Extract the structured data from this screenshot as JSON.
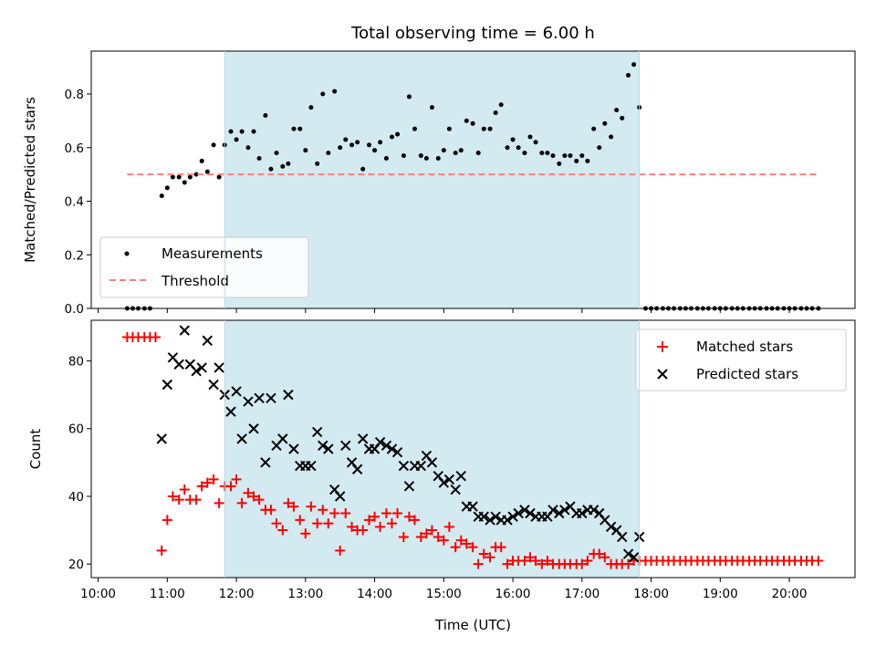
{
  "chart_data": [
    {
      "type": "scatter",
      "title": "Total observing time = 6.00 h",
      "ylabel": "Matched/Predicted stars",
      "xlabel": "",
      "xlim": [
        9.9,
        20.95
      ],
      "ylim": [
        0.0,
        0.96
      ],
      "yticks": [
        0.0,
        0.2,
        0.4,
        0.6,
        0.8
      ],
      "ytick_labels": [
        "0.0",
        "0.2",
        "0.4",
        "0.6",
        "0.8"
      ],
      "shaded_span": [
        11.83,
        17.83
      ],
      "shade_color": "#d3eaf0",
      "legend_position": "lower-left",
      "series": [
        {
          "name": "Measurements",
          "marker": "dot",
          "color": "#000000",
          "x": [
            10.42,
            10.5,
            10.58,
            10.67,
            10.75,
            10.92,
            11.0,
            11.08,
            11.17,
            11.25,
            11.33,
            11.42,
            11.5,
            11.58,
            11.67,
            11.75,
            11.83,
            11.92,
            12.0,
            12.08,
            12.17,
            12.25,
            12.33,
            12.42,
            12.5,
            12.58,
            12.67,
            12.75,
            12.83,
            12.92,
            13.0,
            13.08,
            13.17,
            13.25,
            13.33,
            13.42,
            13.5,
            13.58,
            13.67,
            13.75,
            13.83,
            13.92,
            14.0,
            14.08,
            14.17,
            14.25,
            14.33,
            14.42,
            14.5,
            14.58,
            14.67,
            14.75,
            14.83,
            14.92,
            15.0,
            15.08,
            15.17,
            15.25,
            15.33,
            15.42,
            15.5,
            15.58,
            15.67,
            15.75,
            15.83,
            15.92,
            16.0,
            16.08,
            16.17,
            16.25,
            16.33,
            16.42,
            16.5,
            16.58,
            16.67,
            16.75,
            16.83,
            16.92,
            17.0,
            17.08,
            17.17,
            17.25,
            17.33,
            17.42,
            17.5,
            17.58,
            17.67,
            17.75,
            17.83,
            17.92,
            18.0,
            18.08,
            18.17,
            18.25,
            18.33,
            18.42,
            18.5,
            18.58,
            18.67,
            18.75,
            18.83,
            18.92,
            19.0,
            19.08,
            19.17,
            19.25,
            19.33,
            19.42,
            19.5,
            19.58,
            19.67,
            19.75,
            19.83,
            19.92,
            20.0,
            20.08,
            20.17,
            20.25,
            20.33,
            20.42
          ],
          "y": [
            0.0,
            0.0,
            0.0,
            0.0,
            0.0,
            0.42,
            0.45,
            0.49,
            0.49,
            0.47,
            0.49,
            0.5,
            0.55,
            0.51,
            0.61,
            0.49,
            0.61,
            0.66,
            0.63,
            0.66,
            0.6,
            0.66,
            0.56,
            0.72,
            0.52,
            0.58,
            0.53,
            0.54,
            0.67,
            0.67,
            0.59,
            0.75,
            0.54,
            0.8,
            0.58,
            0.81,
            0.6,
            0.63,
            0.61,
            0.62,
            0.52,
            0.61,
            0.59,
            0.62,
            0.56,
            0.64,
            0.65,
            0.57,
            0.79,
            0.67,
            0.57,
            0.56,
            0.75,
            0.56,
            0.59,
            0.67,
            0.58,
            0.59,
            0.7,
            0.69,
            0.58,
            0.67,
            0.67,
            0.73,
            0.76,
            0.6,
            0.63,
            0.6,
            0.58,
            0.64,
            0.62,
            0.58,
            0.58,
            0.57,
            0.54,
            0.57,
            0.57,
            0.55,
            0.57,
            0.55,
            0.67,
            0.6,
            0.69,
            0.64,
            0.74,
            0.71,
            0.87,
            0.91,
            0.75,
            0.0,
            0.0,
            0.0,
            0.0,
            0.0,
            0.0,
            0.0,
            0.0,
            0.0,
            0.0,
            0.0,
            0.0,
            0.0,
            0.0,
            0.0,
            0.0,
            0.0,
            0.0,
            0.0,
            0.0,
            0.0,
            0.0,
            0.0,
            0.0,
            0.0,
            0.0,
            0.0,
            0.0,
            0.0,
            0.0,
            0.0
          ]
        },
        {
          "name": "Threshold",
          "style": "dashed",
          "color": "#ff7f7f",
          "x": [
            10.42,
            20.42
          ],
          "y": [
            0.5,
            0.5
          ]
        }
      ]
    },
    {
      "type": "scatter",
      "title": "",
      "ylabel": "Count",
      "xlabel": "Time (UTC)",
      "xlim": [
        9.9,
        20.95
      ],
      "ylim": [
        16,
        92
      ],
      "yticks": [
        20,
        40,
        60,
        80
      ],
      "ytick_labels": [
        "20",
        "40",
        "60",
        "80"
      ],
      "xticks": [
        10,
        11,
        12,
        13,
        14,
        15,
        16,
        17,
        18,
        19,
        20
      ],
      "xtick_labels": [
        "10:00",
        "11:00",
        "12:00",
        "13:00",
        "14:00",
        "15:00",
        "16:00",
        "17:00",
        "18:00",
        "19:00",
        "20:00"
      ],
      "shaded_span": [
        11.83,
        17.83
      ],
      "shade_color": "#d3eaf0",
      "legend_position": "upper-right",
      "series": [
        {
          "name": "Matched stars",
          "marker": "plus",
          "color": "#ff0000",
          "x": [
            10.42,
            10.5,
            10.58,
            10.67,
            10.75,
            10.83,
            10.92,
            11.0,
            11.08,
            11.17,
            11.25,
            11.33,
            11.42,
            11.5,
            11.58,
            11.67,
            11.75,
            11.83,
            11.92,
            12.0,
            12.08,
            12.17,
            12.25,
            12.33,
            12.42,
            12.5,
            12.58,
            12.67,
            12.75,
            12.83,
            12.92,
            13.0,
            13.08,
            13.17,
            13.25,
            13.33,
            13.42,
            13.5,
            13.58,
            13.67,
            13.75,
            13.83,
            13.92,
            14.0,
            14.08,
            14.17,
            14.25,
            14.33,
            14.42,
            14.5,
            14.58,
            14.67,
            14.75,
            14.83,
            14.92,
            15.0,
            15.08,
            15.17,
            15.25,
            15.33,
            15.42,
            15.5,
            15.58,
            15.67,
            15.75,
            15.83,
            15.92,
            16.0,
            16.08,
            16.17,
            16.25,
            16.33,
            16.42,
            16.5,
            16.58,
            16.67,
            16.75,
            16.83,
            16.92,
            17.0,
            17.08,
            17.17,
            17.25,
            17.33,
            17.42,
            17.5,
            17.58,
            17.67,
            17.75,
            17.83,
            17.92,
            18.0,
            18.08,
            18.17,
            18.25,
            18.33,
            18.42,
            18.5,
            18.58,
            18.67,
            18.75,
            18.83,
            18.92,
            19.0,
            19.08,
            19.17,
            19.25,
            19.33,
            19.42,
            19.5,
            19.58,
            19.67,
            19.75,
            19.83,
            19.92,
            20.0,
            20.08,
            20.17,
            20.25,
            20.33,
            20.42
          ],
          "y": [
            87,
            87,
            87,
            87,
            87,
            87,
            24,
            33,
            40,
            39,
            42,
            39,
            39,
            43,
            44,
            45,
            38,
            43,
            43,
            45,
            38,
            41,
            40,
            39,
            36,
            36,
            32,
            30,
            38,
            37,
            33,
            29,
            37,
            32,
            36,
            32,
            35,
            24,
            35,
            31,
            30,
            30,
            33,
            34,
            31,
            35,
            32,
            35,
            28,
            34,
            33,
            28,
            29,
            30,
            28,
            27,
            31,
            25,
            27,
            26,
            25,
            20,
            23,
            22,
            25,
            25,
            20,
            21,
            21,
            21,
            22,
            21,
            20,
            21,
            20,
            20,
            20,
            20,
            20,
            20,
            21,
            23,
            23,
            22,
            20,
            20,
            20,
            20,
            21,
            21,
            21,
            21,
            21,
            21,
            21,
            21,
            21,
            21,
            21,
            21,
            21,
            21,
            21,
            21,
            21,
            21,
            21,
            21,
            21,
            21,
            21,
            21,
            21,
            21,
            21,
            21,
            21,
            21,
            21,
            21,
            21
          ]
        },
        {
          "name": "Predicted stars",
          "marker": "x",
          "color": "#000000",
          "x": [
            10.92,
            11.0,
            11.08,
            11.17,
            11.25,
            11.33,
            11.42,
            11.5,
            11.58,
            11.67,
            11.75,
            11.83,
            11.92,
            12.0,
            12.08,
            12.17,
            12.25,
            12.33,
            12.42,
            12.5,
            12.58,
            12.67,
            12.75,
            12.83,
            12.92,
            13.0,
            13.08,
            13.17,
            13.25,
            13.33,
            13.42,
            13.5,
            13.58,
            13.67,
            13.75,
            13.83,
            13.92,
            14.0,
            14.08,
            14.17,
            14.25,
            14.33,
            14.42,
            14.5,
            14.58,
            14.67,
            14.75,
            14.83,
            14.92,
            15.0,
            15.08,
            15.17,
            15.25,
            15.33,
            15.42,
            15.5,
            15.58,
            15.67,
            15.75,
            15.83,
            15.92,
            16.0,
            16.08,
            16.17,
            16.25,
            16.33,
            16.42,
            16.5,
            16.58,
            16.67,
            16.75,
            16.83,
            16.92,
            17.0,
            17.08,
            17.17,
            17.25,
            17.33,
            17.42,
            17.5,
            17.58,
            17.67,
            17.75,
            17.83
          ],
          "y": [
            57,
            73,
            81,
            79,
            89,
            79,
            77,
            78,
            86,
            73,
            78,
            70,
            65,
            71,
            57,
            68,
            60,
            69,
            50,
            69,
            55,
            57,
            70,
            54,
            49,
            49,
            49,
            59,
            55,
            54,
            42,
            40,
            55,
            50,
            48,
            57,
            54,
            54,
            56,
            55,
            54,
            53,
            49,
            43,
            49,
            49,
            52,
            50,
            46,
            44,
            45,
            42,
            46,
            37,
            37,
            34,
            34,
            33,
            34,
            33,
            33,
            34,
            35,
            36,
            35,
            34,
            34,
            34,
            36,
            35,
            36,
            37,
            35,
            35,
            36,
            36,
            35,
            33,
            31,
            30,
            28,
            23,
            22,
            28
          ]
        }
      ]
    }
  ]
}
